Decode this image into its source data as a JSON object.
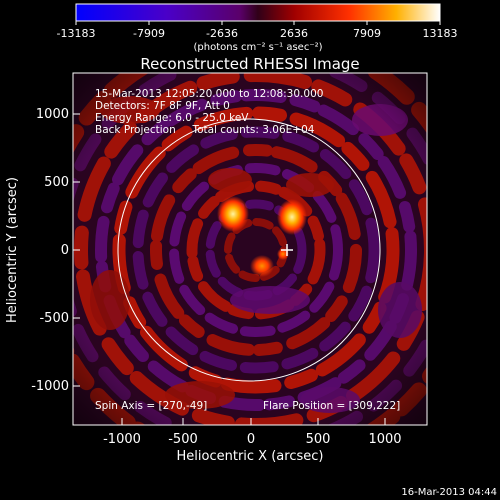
{
  "colorbar": {
    "tick_labels": [
      "-13183",
      "-7909",
      "-2636",
      "2636",
      "7909",
      "13183"
    ],
    "units": "(photons cm⁻² s⁻¹ asec⁻²)"
  },
  "image": {
    "title": "Reconstructed RHESSI Image",
    "info_lines": [
      "15-Mar-2013 12:05:20.000 to 12:08:30.000",
      "Detectors: 7F 8F 9F, Att 0",
      "Energy Range: 6.0 - 25.0 keV",
      "Back Projection     Total counts: 3.06E+04"
    ],
    "spin_axis": "Spin Axis = [270,-49]",
    "flare_position": "Flare Position = [309,222]"
  },
  "axes": {
    "x_label": "Heliocentric X (arcsec)",
    "y_label": "Heliocentric Y (arcsec)",
    "x_ticks": [
      "-1000",
      "-500",
      "0",
      "500",
      "1000"
    ],
    "y_ticks": [
      "1000",
      "500",
      "0",
      "-500",
      "-1000"
    ]
  },
  "footer": {
    "timestamp": "16-Mar-2013 04:44"
  }
}
